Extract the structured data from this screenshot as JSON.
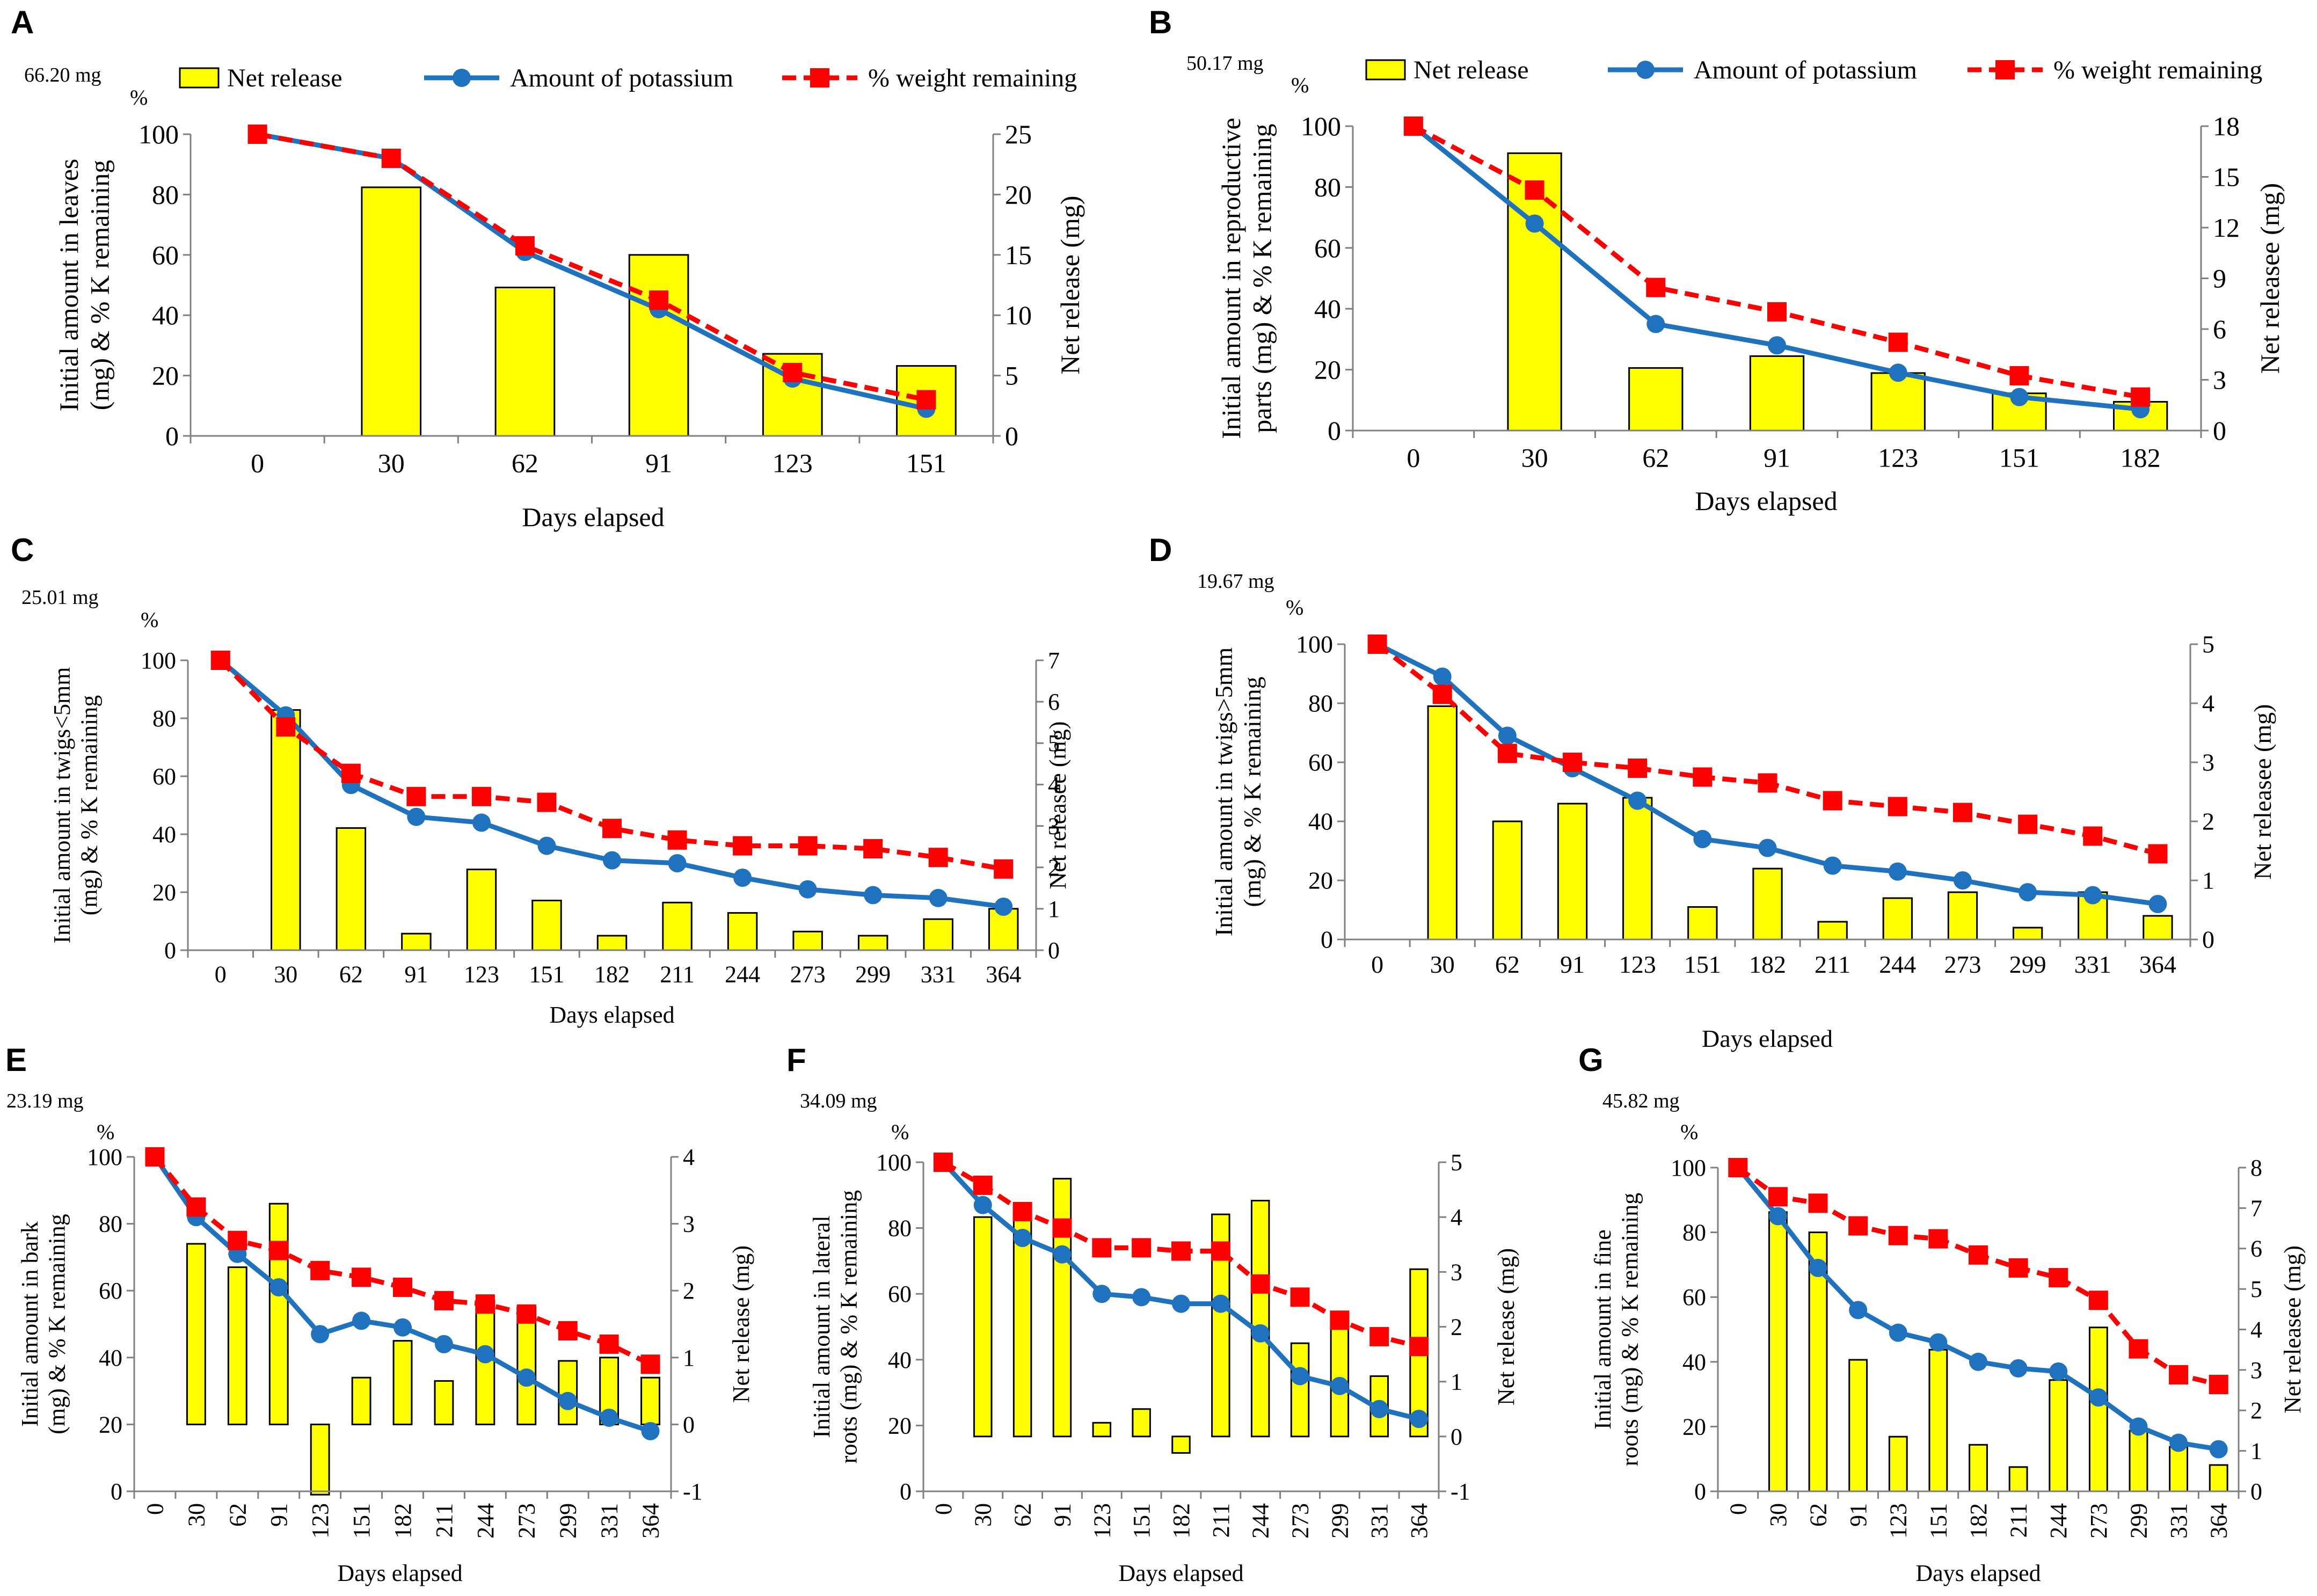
{
  "chart_data": [
    {
      "type": "combo-bar-line",
      "panel": "A",
      "initial_amount": "66.20 mg",
      "pct_label": "%",
      "categories": [
        "0",
        "30",
        "62",
        "91",
        "123",
        "151"
      ],
      "ylabel_lines": [
        "Initial amount in leaves",
        "(mg) & % K remaining"
      ],
      "y2label": "Net release (mg)",
      "xlabel": "Days elapsed",
      "ylim": [
        0,
        100
      ],
      "yticks": [
        0,
        20,
        40,
        60,
        80,
        100
      ],
      "y2lim": [
        0,
        25
      ],
      "y2ticks": [
        0,
        5,
        10,
        15,
        20,
        25
      ],
      "net_release": [
        null,
        20.6,
        12.3,
        15.0,
        6.8,
        5.8
      ],
      "series": [
        {
          "name": "Amount of potassium",
          "values": [
            100,
            92,
            61,
            42,
            19,
            9
          ]
        },
        {
          "name": "% weight remaining",
          "values": [
            100,
            92,
            63,
            45,
            21,
            12
          ]
        }
      ],
      "legend": [
        "Net release",
        "Amount of potassium",
        "% weight remaining"
      ]
    },
    {
      "type": "combo-bar-line",
      "panel": "B",
      "initial_amount": "50.17 mg",
      "pct_label": "%",
      "categories": [
        "0",
        "30",
        "62",
        "91",
        "123",
        "151",
        "182"
      ],
      "ylabel_lines": [
        "Initial amount in reproductive",
        "parts (mg) & % K remaining"
      ],
      "y2label": "Net releasee (mg)",
      "xlabel": "Days elapsed",
      "ylim": [
        0,
        100
      ],
      "yticks": [
        0,
        20,
        40,
        60,
        80,
        100
      ],
      "y2lim": [
        0,
        18
      ],
      "y2ticks": [
        0,
        3,
        6,
        9,
        12,
        15,
        18
      ],
      "net_release": [
        null,
        16.4,
        3.7,
        4.4,
        3.4,
        2.2,
        1.7
      ],
      "series": [
        {
          "name": "Amount of potassium",
          "values": [
            100,
            68,
            35,
            28,
            19,
            11,
            7
          ]
        },
        {
          "name": "% weight remaining",
          "values": [
            100,
            79,
            47,
            39,
            29,
            18,
            11
          ]
        }
      ],
      "legend": [
        "Net release",
        "Amount of potassium",
        "% weight remaining"
      ]
    },
    {
      "type": "combo-bar-line",
      "panel": "C",
      "initial_amount": "25.01 mg",
      "pct_label": "%",
      "categories": [
        "0",
        "30",
        "62",
        "91",
        "123",
        "151",
        "182",
        "211",
        "244",
        "273",
        "299",
        "331",
        "364"
      ],
      "ylabel_lines": [
        "Initial amount in twigs<5mm",
        "(mg) & % K remaining"
      ],
      "y2label": "Net releasee (mg)",
      "xlabel": "Days elapsed",
      "ylim": [
        0,
        100
      ],
      "yticks": [
        0,
        20,
        40,
        60,
        80,
        100
      ],
      "y2lim": [
        0,
        7
      ],
      "y2ticks": [
        0,
        1,
        2,
        3,
        4,
        5,
        6,
        7
      ],
      "net_release": [
        null,
        5.8,
        2.95,
        0.4,
        1.95,
        1.2,
        0.35,
        1.15,
        0.9,
        0.45,
        0.35,
        0.75,
        1.0
      ],
      "series": [
        {
          "name": "Amount of potassium",
          "values": [
            100,
            81,
            57,
            46,
            44,
            36,
            31,
            30,
            25,
            21,
            19,
            18,
            15
          ]
        },
        {
          "name": "% weight remaining",
          "values": [
            100,
            77,
            61,
            53,
            53,
            51,
            42,
            38,
            36,
            36,
            35,
            32,
            28
          ]
        }
      ],
      "legend": [
        "Net release",
        "Amount of potassium",
        "% weight remaining"
      ]
    },
    {
      "type": "combo-bar-line",
      "panel": "D",
      "initial_amount": "19.67 mg",
      "pct_label": "%",
      "categories": [
        "0",
        "30",
        "62",
        "91",
        "123",
        "151",
        "182",
        "211",
        "244",
        "273",
        "299",
        "331",
        "364"
      ],
      "ylabel_lines": [
        "Initial amount in twigs>5mm",
        "(mg) & % K remaining"
      ],
      "y2label": "Net releasee (mg)",
      "xlabel": "Days elapsed",
      "ylim": [
        0,
        100
      ],
      "yticks": [
        0,
        20,
        40,
        60,
        80,
        100
      ],
      "y2lim": [
        0,
        5
      ],
      "y2ticks": [
        0,
        1,
        2,
        3,
        4,
        5
      ],
      "net_release": [
        null,
        3.95,
        2.0,
        2.3,
        2.4,
        0.55,
        1.2,
        0.3,
        0.7,
        0.8,
        0.2,
        0.8,
        0.4
      ],
      "series": [
        {
          "name": "Amount of potassium",
          "values": [
            100,
            89,
            69,
            58,
            47,
            34,
            31,
            25,
            23,
            20,
            16,
            15,
            12
          ]
        },
        {
          "name": "% weight remaining",
          "values": [
            100,
            83,
            63,
            60,
            58,
            55,
            53,
            47,
            45,
            43,
            39,
            35,
            29
          ]
        }
      ],
      "legend": [
        "Net release",
        "Amount of potassium",
        "% weight remaining"
      ]
    },
    {
      "type": "combo-bar-line",
      "panel": "E",
      "initial_amount": "23.19 mg",
      "pct_label": "%",
      "categories": [
        "0",
        "30",
        "62",
        "91",
        "123",
        "151",
        "182",
        "211",
        "244",
        "273",
        "299",
        "331",
        "364"
      ],
      "ylabel_lines": [
        "Initial amount in bark",
        "(mg) & % K remaining"
      ],
      "y2label": "Net release (mg)",
      "xlabel": "Days elapsed",
      "ylim": [
        0,
        100
      ],
      "yticks": [
        0,
        20,
        40,
        60,
        80,
        100
      ],
      "y2lim": [
        -1,
        4
      ],
      "y2ticks": [
        -1,
        0,
        1,
        2,
        3,
        4
      ],
      "net_release": [
        null,
        2.7,
        2.35,
        3.3,
        -1.05,
        0.7,
        1.25,
        0.65,
        1.85,
        1.75,
        0.95,
        1.0,
        0.7
      ],
      "series": [
        {
          "name": "Amount of potassium",
          "values": [
            100,
            82,
            71,
            61,
            47,
            51,
            49,
            44,
            41,
            34,
            27,
            22,
            18
          ]
        },
        {
          "name": "% weight remaining",
          "values": [
            100,
            85,
            75,
            72,
            66,
            64,
            61,
            57,
            56,
            53,
            48,
            44,
            38
          ]
        }
      ],
      "legend": [
        "Net release",
        "Amount of potassium",
        "% weight remaining"
      ]
    },
    {
      "type": "combo-bar-line",
      "panel": "F",
      "initial_amount": "34.09 mg",
      "pct_label": "%",
      "categories": [
        "0",
        "30",
        "62",
        "91",
        "123",
        "151",
        "182",
        "211",
        "244",
        "273",
        "299",
        "331",
        "364"
      ],
      "ylabel_lines": [
        "Initial amount in lateral",
        "roots (mg) & % K remaining"
      ],
      "y2label": "Net release (mg)",
      "xlabel": "Days elapsed",
      "ylim": [
        0,
        100
      ],
      "yticks": [
        0,
        20,
        40,
        60,
        80,
        100
      ],
      "y2lim": [
        -1,
        5
      ],
      "y2ticks": [
        -1,
        0,
        1,
        2,
        3,
        4,
        5
      ],
      "net_release": [
        null,
        4.0,
        4.1,
        4.7,
        0.25,
        0.5,
        -0.3,
        4.05,
        4.3,
        1.7,
        2.25,
        1.1,
        3.05
      ],
      "series": [
        {
          "name": "Amount of potassium",
          "values": [
            100,
            87,
            77,
            72,
            60,
            59,
            57,
            57,
            48,
            35,
            32,
            25,
            22
          ]
        },
        {
          "name": "% weight remaining",
          "values": [
            100,
            93,
            85,
            80,
            74,
            74,
            73,
            73,
            63,
            59,
            52,
            47,
            44
          ]
        }
      ],
      "legend": [
        "Net release",
        "Amount of potassium",
        "% weight remaining"
      ]
    },
    {
      "type": "combo-bar-line",
      "panel": "G",
      "initial_amount": "45.82 mg",
      "pct_label": "%",
      "categories": [
        "0",
        "30",
        "62",
        "91",
        "123",
        "151",
        "182",
        "211",
        "244",
        "273",
        "299",
        "331",
        "364"
      ],
      "ylabel_lines": [
        "Initial amount in fine",
        "roots (mg) & % K remaining"
      ],
      "y2label": "Net releasee (mg)",
      "xlabel": "Days elapsed",
      "ylim": [
        0,
        100
      ],
      "yticks": [
        0,
        20,
        40,
        60,
        80,
        100
      ],
      "y2lim": [
        0,
        8
      ],
      "y2ticks": [
        0,
        1,
        2,
        3,
        4,
        5,
        6,
        7,
        8
      ],
      "net_release": [
        null,
        6.9,
        6.4,
        3.25,
        1.35,
        3.5,
        1.15,
        0.6,
        2.75,
        4.05,
        1.5,
        1.1,
        0.65
      ],
      "series": [
        {
          "name": "Amount of potassium",
          "values": [
            100,
            85,
            69,
            56,
            49,
            46,
            40,
            38,
            37,
            29,
            20,
            15,
            13
          ]
        },
        {
          "name": "% weight remaining",
          "values": [
            100,
            91,
            89,
            82,
            79,
            78,
            73,
            69,
            66,
            59,
            44,
            36,
            33
          ]
        }
      ],
      "legend": [
        "Net release",
        "Amount of potassium",
        "% weight remaining"
      ]
    }
  ],
  "colors": {
    "bar_fill": "#FFFF00",
    "potassium_line": "#1F72BE",
    "weight_line": "#FF0000"
  }
}
